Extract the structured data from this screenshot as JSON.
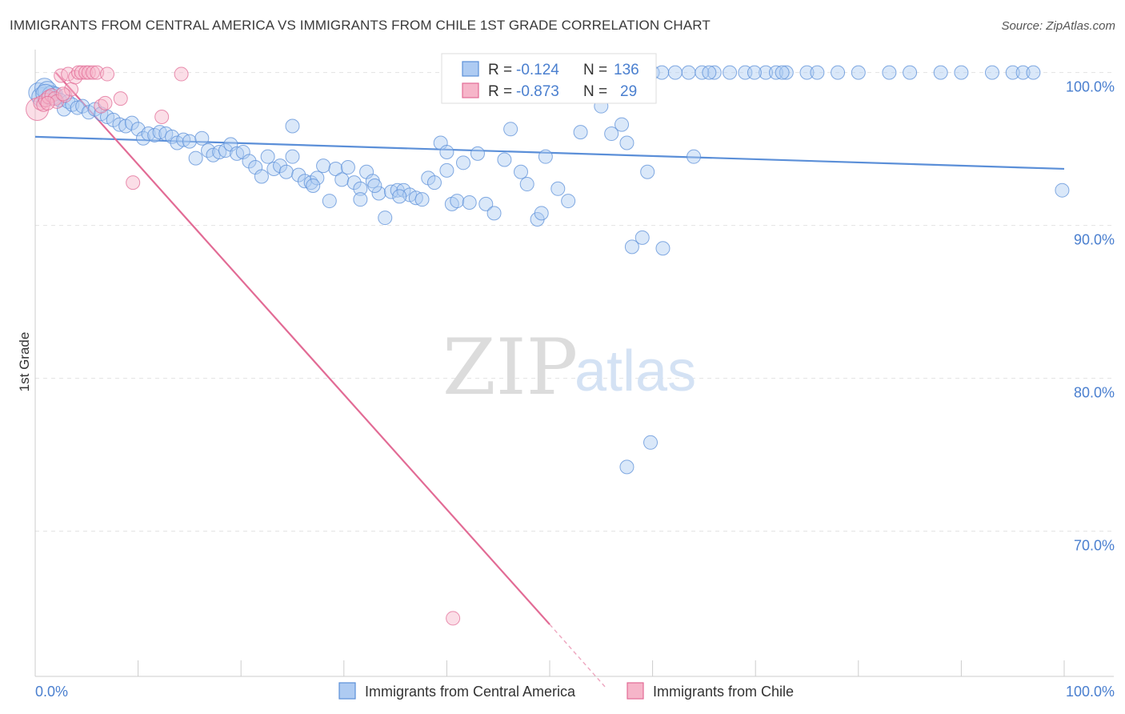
{
  "title": "IMMIGRANTS FROM CENTRAL AMERICA VS IMMIGRANTS FROM CHILE 1ST GRADE CORRELATION CHART",
  "source": "Source: ZipAtlas.com",
  "watermark": {
    "zip": "ZIP",
    "atlas": "atlas"
  },
  "stats": [
    {
      "r_label": "R =",
      "r_value": "-0.124",
      "n_label": "N =",
      "n_value": "136",
      "color": "#5b8fd8",
      "fill": "#aecbf2"
    },
    {
      "r_label": "R =",
      "r_value": "-0.873",
      "n_label": "N =",
      "n_value": "29",
      "color": "#e26b95",
      "fill": "#f6b5c9"
    }
  ],
  "chart_data": {
    "type": "scatter",
    "xlabel": "",
    "ylabel": "1st Grade",
    "xlim": [
      0,
      100
    ],
    "ylim": [
      60.5,
      101.5
    ],
    "x_tick_labels": [
      "0.0%",
      "100.0%"
    ],
    "y_ticks": [
      {
        "value": 100,
        "label": "100.0%"
      },
      {
        "value": 90,
        "label": "90.0%"
      },
      {
        "value": 80,
        "label": "80.0%"
      },
      {
        "value": 70,
        "label": "70.0%"
      }
    ],
    "grid": true,
    "legend_position": "bottom-center",
    "series": [
      {
        "name": "Immigrants from Central America",
        "color": "#5b8fd8",
        "fill": "#aecbf2",
        "trend": {
          "x": [
            0,
            100
          ],
          "y": [
            95.8,
            93.7
          ]
        },
        "points": [
          [
            0.3,
            98.7
          ],
          [
            0.6,
            98.4
          ],
          [
            0.9,
            99.0
          ],
          [
            1.2,
            98.8
          ],
          [
            1.6,
            98.5
          ],
          [
            2.0,
            98.6
          ],
          [
            2.4,
            98.2
          ],
          [
            2.8,
            97.6
          ],
          [
            3.2,
            98.1
          ],
          [
            3.6,
            97.9
          ],
          [
            4.1,
            97.7
          ],
          [
            4.6,
            97.8
          ],
          [
            5.2,
            97.4
          ],
          [
            5.8,
            97.6
          ],
          [
            6.4,
            97.3
          ],
          [
            7.0,
            97.1
          ],
          [
            7.6,
            96.9
          ],
          [
            8.2,
            96.6
          ],
          [
            8.8,
            96.5
          ],
          [
            9.4,
            96.7
          ],
          [
            10.0,
            96.3
          ],
          [
            10.5,
            95.7
          ],
          [
            11.0,
            96.0
          ],
          [
            11.6,
            95.9
          ],
          [
            12.1,
            96.1
          ],
          [
            12.7,
            96.0
          ],
          [
            13.3,
            95.8
          ],
          [
            13.8,
            95.4
          ],
          [
            14.4,
            95.6
          ],
          [
            15.0,
            95.5
          ],
          [
            15.6,
            94.4
          ],
          [
            16.2,
            95.7
          ],
          [
            16.8,
            94.9
          ],
          [
            17.3,
            94.6
          ],
          [
            17.9,
            94.8
          ],
          [
            18.5,
            94.9
          ],
          [
            19.0,
            95.3
          ],
          [
            19.6,
            94.7
          ],
          [
            20.2,
            94.8
          ],
          [
            20.8,
            94.2
          ],
          [
            21.4,
            93.8
          ],
          [
            22.0,
            93.2
          ],
          [
            22.6,
            94.5
          ],
          [
            23.2,
            93.7
          ],
          [
            23.8,
            93.9
          ],
          [
            24.4,
            93.5
          ],
          [
            25.0,
            94.5
          ],
          [
            25.6,
            93.3
          ],
          [
            26.2,
            92.9
          ],
          [
            26.8,
            92.8
          ],
          [
            27.4,
            93.1
          ],
          [
            28.0,
            93.9
          ],
          [
            28.6,
            91.6
          ],
          [
            29.2,
            93.7
          ],
          [
            29.8,
            93.0
          ],
          [
            30.4,
            93.8
          ],
          [
            31.0,
            92.8
          ],
          [
            31.6,
            92.4
          ],
          [
            32.2,
            93.5
          ],
          [
            32.8,
            92.9
          ],
          [
            33.4,
            92.1
          ],
          [
            34.0,
            90.5
          ],
          [
            34.6,
            92.2
          ],
          [
            35.2,
            92.3
          ],
          [
            35.8,
            92.3
          ],
          [
            36.4,
            92.0
          ],
          [
            37.0,
            91.8
          ],
          [
            37.6,
            91.7
          ],
          [
            38.2,
            93.1
          ],
          [
            38.8,
            92.8
          ],
          [
            39.4,
            95.4
          ],
          [
            40.0,
            94.8
          ],
          [
            40.5,
            91.4
          ],
          [
            41.0,
            91.6
          ],
          [
            41.6,
            94.1
          ],
          [
            42.2,
            91.5
          ],
          [
            43.0,
            94.7
          ],
          [
            43.8,
            91.4
          ],
          [
            44.6,
            90.8
          ],
          [
            45.6,
            94.3
          ],
          [
            46.2,
            96.3
          ],
          [
            47.2,
            93.5
          ],
          [
            47.8,
            92.7
          ],
          [
            48.8,
            90.4
          ],
          [
            49.2,
            90.8
          ],
          [
            49.6,
            94.5
          ],
          [
            50.8,
            92.4
          ],
          [
            51.8,
            91.6
          ],
          [
            52.4,
            100.0
          ],
          [
            53.0,
            96.1
          ],
          [
            54.0,
            100.0
          ],
          [
            55.0,
            97.8
          ],
          [
            56.0,
            96.0
          ],
          [
            57.0,
            96.6
          ],
          [
            57.5,
            95.4
          ],
          [
            58.0,
            88.6
          ],
          [
            59.0,
            89.2
          ],
          [
            59.5,
            93.5
          ],
          [
            60.0,
            100.0
          ],
          [
            61.0,
            88.5
          ],
          [
            63.5,
            100.0
          ],
          [
            64.0,
            94.5
          ],
          [
            66.0,
            100.0
          ],
          [
            67.5,
            100.0
          ],
          [
            69.0,
            100.0
          ],
          [
            71.0,
            100.0
          ],
          [
            72.0,
            100.0
          ],
          [
            73.0,
            100.0
          ],
          [
            75.0,
            100.0
          ],
          [
            76.0,
            100.0
          ],
          [
            78.0,
            100.0
          ],
          [
            80.0,
            100.0
          ],
          [
            83.0,
            100.0
          ],
          [
            85.0,
            100.0
          ],
          [
            88.0,
            100.0
          ],
          [
            90.0,
            100.0
          ],
          [
            93.0,
            100.0
          ],
          [
            95.0,
            100.0
          ],
          [
            96.0,
            100.0
          ],
          [
            97.0,
            100.0
          ],
          [
            99.8,
            92.3
          ],
          [
            48.6,
            100.0
          ],
          [
            50.4,
            100.0
          ],
          [
            58.6,
            100.0
          ],
          [
            60.9,
            100.0
          ],
          [
            62.2,
            100.0
          ],
          [
            64.8,
            100.0
          ],
          [
            65.5,
            100.0
          ],
          [
            69.9,
            100.0
          ],
          [
            72.6,
            100.0
          ],
          [
            31.6,
            91.7
          ],
          [
            33.0,
            92.6
          ],
          [
            35.4,
            91.9
          ],
          [
            27.0,
            92.6
          ],
          [
            40.0,
            93.6
          ],
          [
            43.3,
            100.0
          ],
          [
            59.8,
            75.8
          ],
          [
            57.5,
            74.2
          ],
          [
            25.0,
            96.5
          ],
          [
            1.0,
            98.6
          ]
        ]
      },
      {
        "name": "Immigrants from Chile",
        "color": "#e26b95",
        "fill": "#f6b5c9",
        "trend": {
          "x": [
            2.0,
            50.0
          ],
          "y": [
            100.0,
            63.9
          ]
        },
        "trend_dashed": {
          "x": [
            50.0,
            55.4
          ],
          "y": [
            63.9,
            59.8
          ]
        },
        "points": [
          [
            0.2,
            97.6
          ],
          [
            0.5,
            98.0
          ],
          [
            0.8,
            97.9
          ],
          [
            1.0,
            98.2
          ],
          [
            1.3,
            98.4
          ],
          [
            1.6,
            98.5
          ],
          [
            1.9,
            98.3
          ],
          [
            2.1,
            98.1
          ],
          [
            2.5,
            99.8
          ],
          [
            2.9,
            98.5
          ],
          [
            3.2,
            99.9
          ],
          [
            3.5,
            98.9
          ],
          [
            3.9,
            99.7
          ],
          [
            4.2,
            100.0
          ],
          [
            4.5,
            100.0
          ],
          [
            4.9,
            100.0
          ],
          [
            5.2,
            100.0
          ],
          [
            5.6,
            100.0
          ],
          [
            6.0,
            100.0
          ],
          [
            6.4,
            97.8
          ],
          [
            6.8,
            98.0
          ],
          [
            7.0,
            99.9
          ],
          [
            8.3,
            98.3
          ],
          [
            9.5,
            92.8
          ],
          [
            12.3,
            97.1
          ],
          [
            14.2,
            99.9
          ],
          [
            40.6,
            64.3
          ],
          [
            1.2,
            98.0
          ],
          [
            2.7,
            98.6
          ]
        ]
      }
    ]
  }
}
